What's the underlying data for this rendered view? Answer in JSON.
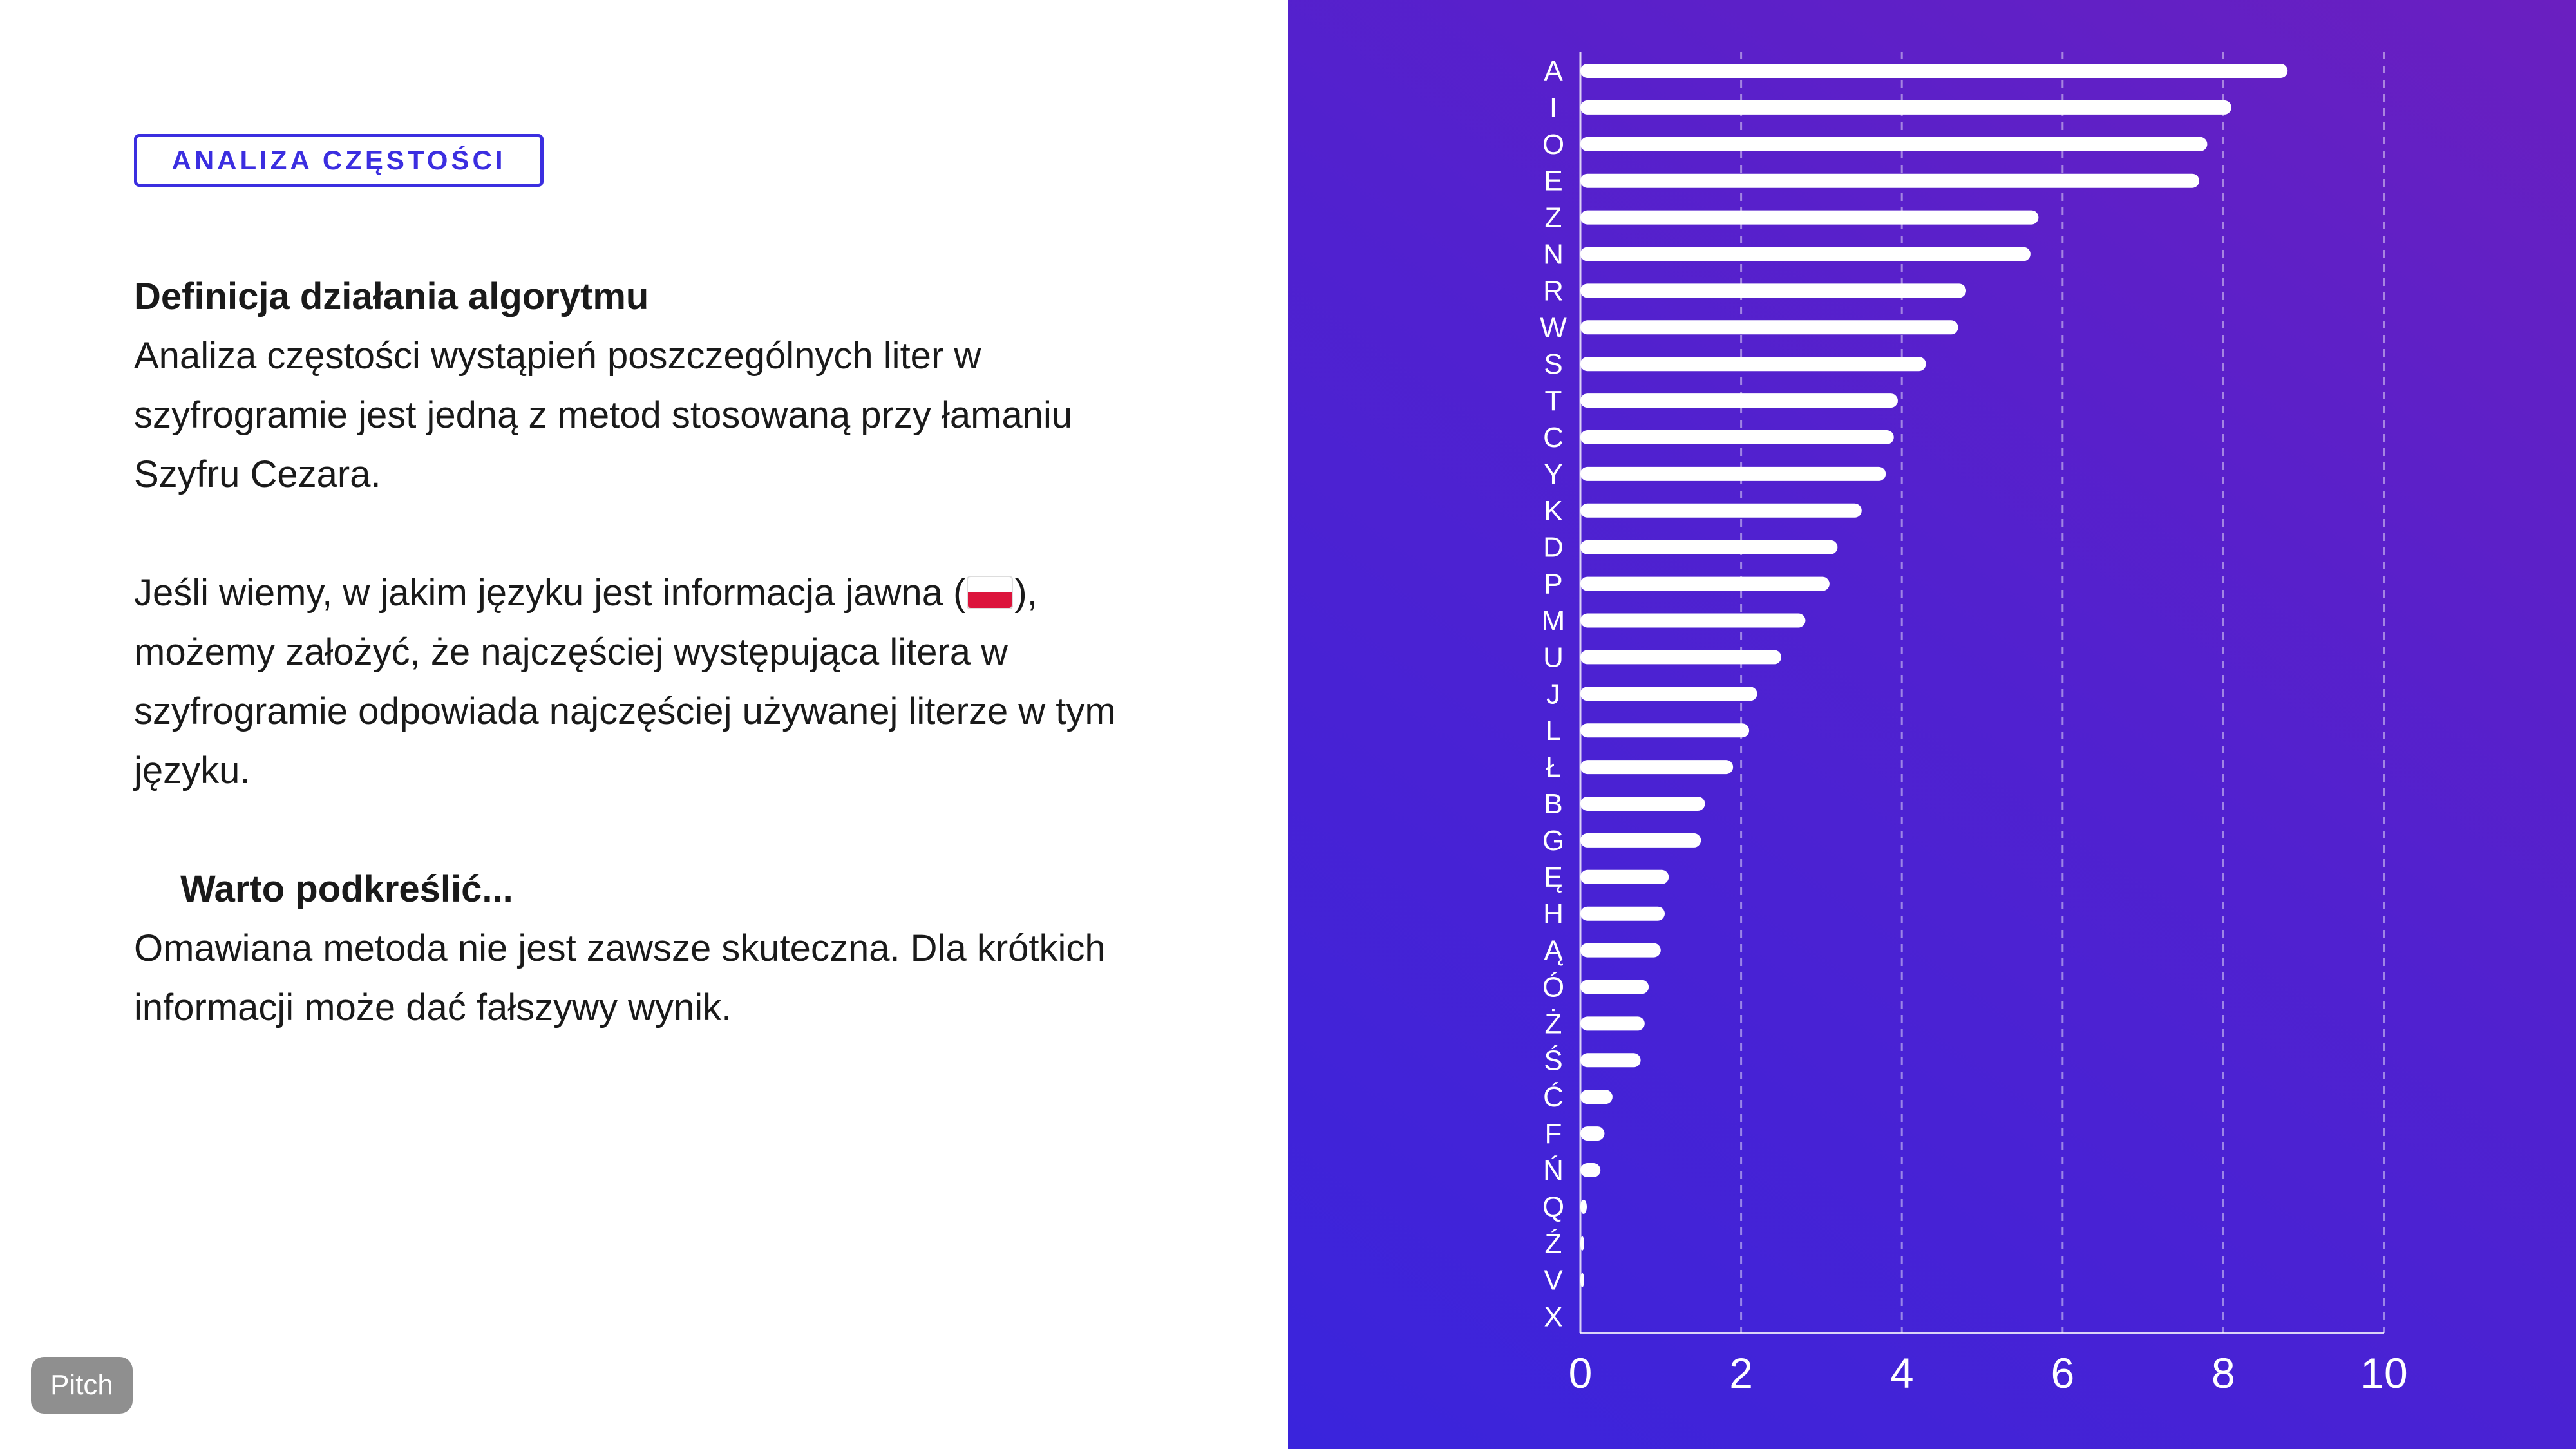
{
  "tag_label": "ANALIZA CZĘSTOŚCI",
  "definition": {
    "heading": "Definicja działania algorytmu",
    "paragraph1": "Analiza częstości wystąpień poszczególnych liter w szyfrogramie jest jedną z metod stosowaną przy łamaniu Szyfru Cezara.",
    "paragraph2_before_flag": "Jeśli wiemy, w jakim języku jest informacja jawna (",
    "flag_icon": "poland-flag-icon",
    "paragraph2_after_flag": "), możemy założyć, że najczęściej występująca litera w szyfrogramie odpowiada najczęściej używanej literze w tym języku."
  },
  "note": {
    "heading": "Warto podkreślić...",
    "text": "Omawiana metoda nie jest zawsze skuteczna. Dla krótkich informacji może dać fałszywy wynik."
  },
  "badge": "Pitch",
  "colors": {
    "accent": "#3b2ee0",
    "panel_gradient_start": "#3a24dc",
    "panel_gradient_end": "#6a1fc0",
    "bar": "#ffffff"
  },
  "chart_data": {
    "type": "bar",
    "orientation": "horizontal",
    "categories": [
      "A",
      "I",
      "O",
      "E",
      "Z",
      "N",
      "R",
      "W",
      "S",
      "T",
      "C",
      "Y",
      "K",
      "D",
      "P",
      "M",
      "U",
      "J",
      "L",
      "Ł",
      "B",
      "G",
      "Ę",
      "H",
      "Ą",
      "Ó",
      "Ż",
      "Ś",
      "Ć",
      "F",
      "Ń",
      "Q",
      "Ź",
      "V",
      "X"
    ],
    "values": [
      8.8,
      8.1,
      7.8,
      7.7,
      5.7,
      5.6,
      4.8,
      4.7,
      4.3,
      3.95,
      3.9,
      3.8,
      3.5,
      3.2,
      3.1,
      2.8,
      2.5,
      2.2,
      2.1,
      1.9,
      1.55,
      1.5,
      1.1,
      1.05,
      1.0,
      0.85,
      0.8,
      0.75,
      0.4,
      0.3,
      0.25,
      0.08,
      0.04,
      0.02,
      0.0
    ],
    "xlim": [
      0,
      10
    ],
    "xticks": [
      "0",
      "2",
      "4",
      "6",
      "8",
      "10"
    ],
    "grid": "vertical dashed",
    "title": "",
    "xlabel": "",
    "ylabel": ""
  }
}
